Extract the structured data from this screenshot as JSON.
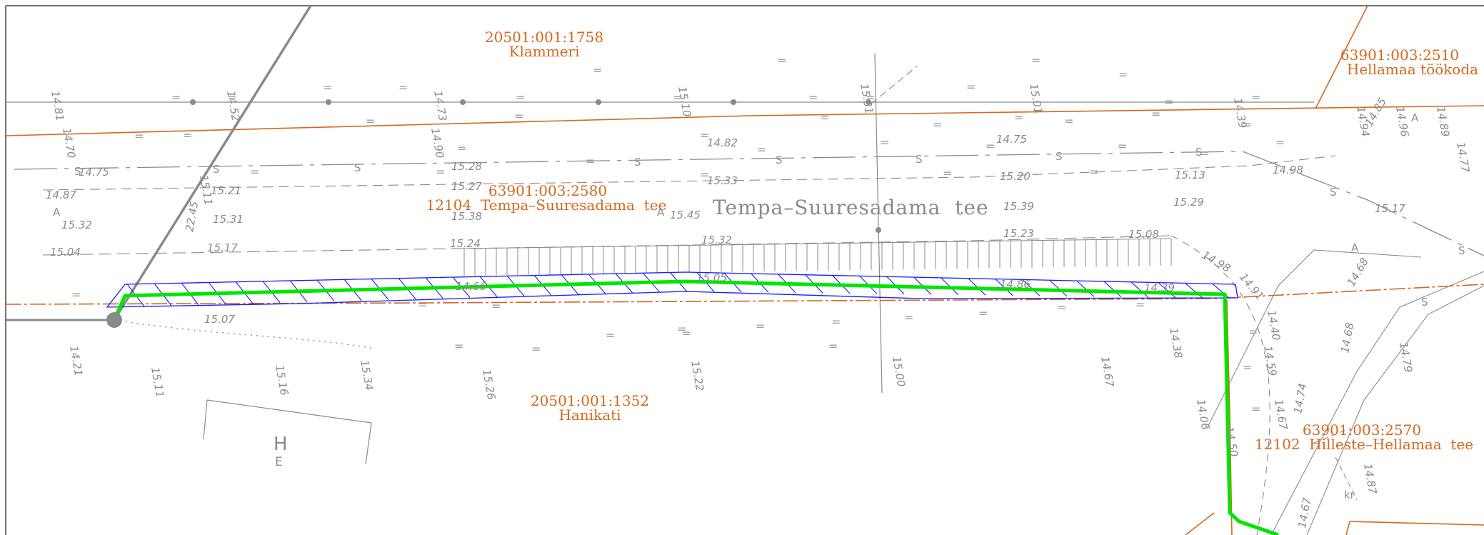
{
  "map": {
    "parcels": [
      {
        "id": "20501:001:1758",
        "name": "Klammeri"
      },
      {
        "id": "63901:003:2510",
        "name": "Hellamaa töökoda"
      },
      {
        "id": "63901:003:2580",
        "name": "12104  Tempa–Suuresadama  tee"
      },
      {
        "id": "20501:001:1352",
        "name": "Hanikati"
      },
      {
        "id": "63901:003:2570",
        "name": "12102  Hilleste–Hellamaa  tee"
      }
    ],
    "road_label": "Tempa–Suuresadama  tee",
    "building_label": "H",
    "building_sub": "E",
    "marks": {
      "a": "A",
      "s": "S",
      "eq": "=",
      "kr": "kr"
    },
    "elevations": [
      "14.81",
      "14.70",
      "14.52",
      "14.73",
      "14.90",
      "15.10",
      "15.31",
      "15.01",
      "14.39",
      "14.94",
      "14.96",
      "14.89",
      "14.77",
      "14.85",
      "14.82",
      "14.75",
      "14.75",
      "15.11",
      "15.28",
      "15.33",
      "15.20",
      "15.13",
      "14.98",
      "14.87",
      "15.21",
      "15.27",
      "15.32",
      "15.31",
      "15.38",
      "15.45",
      "15.39",
      "15.29",
      "15.17",
      "15.04",
      "15.17",
      "15.24",
      "15.32",
      "15.23",
      "15.08",
      "14.98",
      "14.91",
      "14.68",
      "14.66",
      "15.05",
      "14.86",
      "14.39",
      "14.21",
      "15.07",
      "15.11",
      "15.16",
      "15.34",
      "15.26",
      "15.22",
      "15.00",
      "14.67",
      "14.38",
      "14.06",
      "14.40",
      "14.59",
      "14.67",
      "14.74",
      "14.68",
      "14.79",
      "14.87",
      "14.50",
      "14.67",
      "22.45"
    ],
    "colors": {
      "boundary": "#d2691e",
      "route": "#00e600",
      "hatch": "#1a1aff",
      "lines": "#8a8a8a"
    }
  }
}
